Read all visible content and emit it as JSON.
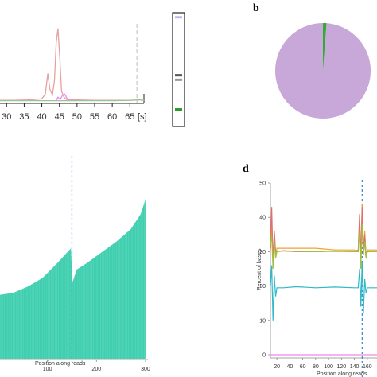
{
  "panels": {
    "b_label": "b",
    "d_label": "d"
  },
  "chart_data": [
    {
      "id": "electropherogram",
      "type": "line",
      "xlabel": "",
      "ylabel": "",
      "x_unit_label": "[s]",
      "x_ticks": [
        30,
        35,
        40,
        45,
        50,
        55,
        60,
        65
      ],
      "xlim": [
        27,
        69
      ],
      "ylim": [
        0,
        100
      ],
      "marker_line_x": 67,
      "marker_line_color": "#c8c8c8",
      "series": [
        {
          "color": "#e8a0a0",
          "x": [
            27,
            32,
            36,
            38,
            40,
            41,
            41.7,
            42.3,
            43,
            43.6,
            44.1,
            44.6,
            45.1,
            45.6,
            46.3,
            47,
            50,
            55,
            60,
            65,
            67.5,
            69
          ],
          "y": [
            2,
            2,
            2.5,
            3,
            4,
            10,
            37,
            16,
            9,
            28,
            78,
            96,
            58,
            14,
            6,
            3,
            2.5,
            2,
            2,
            2,
            2.5,
            2
          ]
        },
        {
          "color": "#ee88ee",
          "x": [
            44,
            44.6,
            45.2,
            45.8,
            46.5,
            47.2,
            48
          ],
          "y": [
            1,
            6,
            3,
            8,
            10,
            4,
            2
          ]
        },
        {
          "color": "#9cc29c",
          "x": [
            27,
            45,
            60,
            66,
            67.5,
            69
          ],
          "y": [
            1.5,
            1.5,
            1.5,
            2,
            3,
            1.5
          ]
        }
      ]
    },
    {
      "id": "gel-lane",
      "type": "gel",
      "bands": [
        {
          "position": 0.04,
          "color": "#c4b8f0"
        },
        {
          "position": 0.55,
          "color": "#555555"
        },
        {
          "position": 0.59,
          "color": "#999999"
        },
        {
          "position": 0.85,
          "color": "#2a9a2a"
        }
      ]
    },
    {
      "id": "pie",
      "type": "pie",
      "slices": [
        {
          "value": 98.8,
          "color": "#c8a8d8"
        },
        {
          "value": 1.2,
          "color": "#33aa33"
        }
      ]
    },
    {
      "id": "coverage",
      "type": "bar",
      "xlabel": "Position along reads",
      "x_ticks": [
        100,
        200,
        300
      ],
      "xlim": [
        0,
        305
      ],
      "ylim": [
        0,
        100
      ],
      "bar_color": "#3fcfaf",
      "divider_x": 150,
      "divider_color": "#3f7fd0",
      "profile_x": [
        0,
        30,
        60,
        90,
        120,
        140,
        148,
        151,
        160,
        180,
        210,
        240,
        270,
        290,
        300
      ],
      "profile_y": [
        30,
        31,
        34,
        38,
        45,
        50,
        52,
        36,
        42,
        45,
        50,
        55,
        61,
        68,
        75
      ]
    },
    {
      "id": "base-composition",
      "type": "line",
      "ylabel": "Percent of bases",
      "xlabel": "Position along reads",
      "y_ticks": [
        0,
        10,
        20,
        30,
        40,
        50
      ],
      "x_ticks": [
        20,
        40,
        60,
        80,
        100,
        120,
        140,
        160
      ],
      "ylim": [
        0,
        50
      ],
      "xlim": [
        10,
        175
      ],
      "divider_x": 152,
      "divider_color": "#3f7fd0",
      "series": [
        {
          "color": "#f0a030",
          "x": [
            10,
            12,
            14,
            16,
            18,
            20,
            30,
            50,
            80,
            110,
            140,
            146,
            148,
            150,
            152,
            154,
            156,
            158,
            160,
            175
          ],
          "y": [
            30,
            39,
            26,
            35,
            29,
            31,
            31,
            31,
            31,
            30.5,
            30.5,
            30,
            40,
            27,
            44,
            31,
            36,
            29,
            30.5,
            30.5
          ]
        },
        {
          "color": "#e07070",
          "x": [
            10,
            12,
            14,
            16,
            18,
            20,
            30,
            50,
            80,
            110,
            140,
            146,
            148,
            150,
            152,
            154,
            156,
            158,
            160,
            175
          ],
          "y": [
            31,
            43,
            27,
            36,
            30,
            30,
            30.2,
            30,
            30,
            30.2,
            30,
            30.5,
            41,
            28,
            43,
            30,
            35,
            28,
            30,
            30
          ]
        },
        {
          "color": "#a0c040",
          "x": [
            10,
            12,
            14,
            16,
            18,
            20,
            30,
            50,
            80,
            110,
            140,
            146,
            148,
            150,
            152,
            154,
            156,
            158,
            160,
            175
          ],
          "y": [
            32,
            35,
            25,
            33,
            28,
            30,
            30.3,
            30.1,
            30,
            30.1,
            30,
            30,
            36,
            25,
            38,
            29,
            33,
            28,
            30,
            30
          ]
        },
        {
          "color": "#30b8c8",
          "x": [
            10,
            12,
            14,
            16,
            18,
            20,
            30,
            50,
            80,
            110,
            140,
            146,
            148,
            150,
            152,
            154,
            156,
            158,
            160,
            175
          ],
          "y": [
            20,
            26,
            10,
            23,
            17,
            19.5,
            19.5,
            19.8,
            19.5,
            19.7,
            19.5,
            19.5,
            25,
            14,
            27,
            12,
            22,
            18,
            19.5,
            19.5
          ]
        },
        {
          "color": "#ee88ee",
          "x": [
            10,
            175
          ],
          "y": [
            0,
            0
          ]
        }
      ]
    }
  ]
}
